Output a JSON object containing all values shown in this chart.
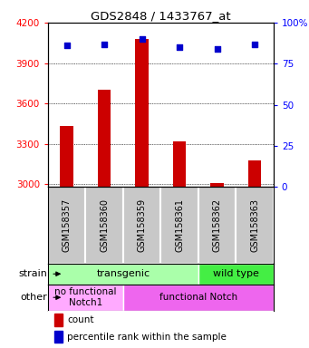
{
  "title": "GDS2848 / 1433767_at",
  "samples": [
    "GSM158357",
    "GSM158360",
    "GSM158359",
    "GSM158361",
    "GSM158362",
    "GSM158363"
  ],
  "counts": [
    3430,
    3700,
    4080,
    3315,
    3010,
    3175
  ],
  "percentiles": [
    86,
    87,
    90,
    85,
    84,
    87
  ],
  "ylim_left": [
    2980,
    4200
  ],
  "yticks_left": [
    3000,
    3300,
    3600,
    3900,
    4200
  ],
  "ylim_right": [
    0,
    100
  ],
  "yticks_right": [
    0,
    25,
    50,
    75,
    100
  ],
  "bar_color": "#cc0000",
  "dot_color": "#0000cc",
  "label_bg_color": "#c8c8c8",
  "strain_row": [
    {
      "label": "transgenic",
      "span": [
        0,
        4
      ],
      "color": "#aaffaa"
    },
    {
      "label": "wild type",
      "span": [
        4,
        6
      ],
      "color": "#44ee44"
    }
  ],
  "other_row": [
    {
      "label": "no functional\nNotch1",
      "span": [
        0,
        2
      ],
      "color": "#ffaaff"
    },
    {
      "label": "functional Notch",
      "span": [
        2,
        6
      ],
      "color": "#ee66ee"
    }
  ],
  "strain_label": "strain",
  "other_label": "other",
  "legend_count_label": "count",
  "legend_pct_label": "percentile rank within the sample",
  "bar_width": 0.35
}
